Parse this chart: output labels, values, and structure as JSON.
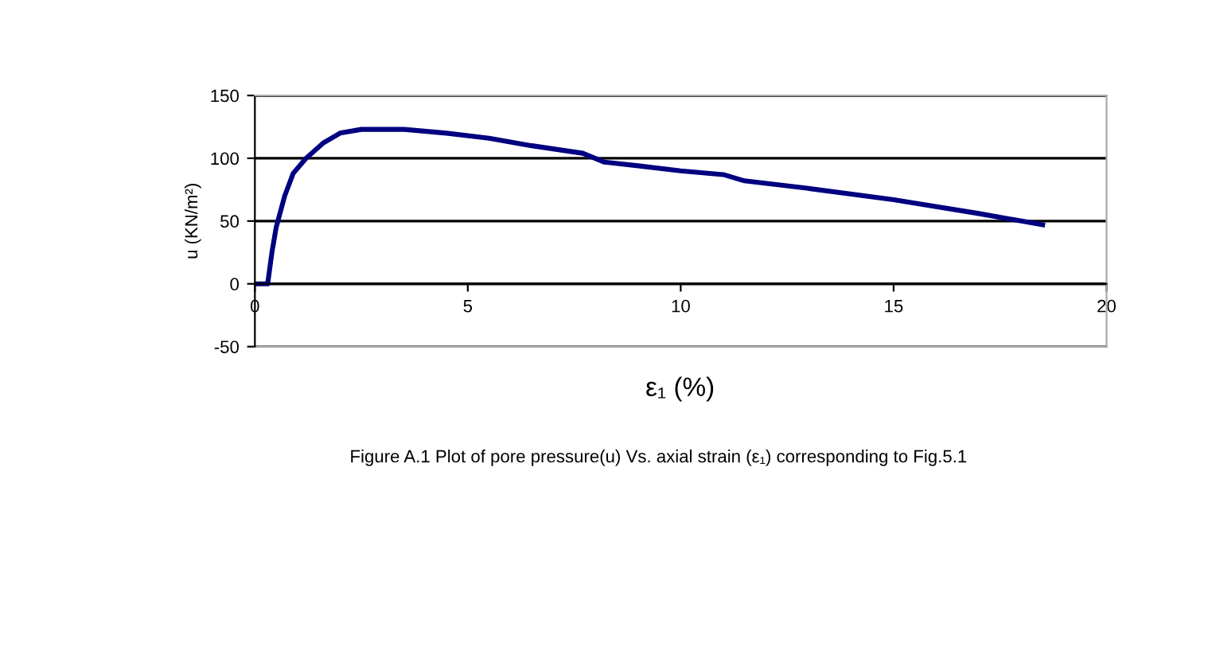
{
  "chart_data": {
    "type": "line",
    "xlabel": "ε₁ (%)",
    "ylabel": "u (KN/m²)",
    "annotations": [
      "Figure A.1 Plot of pore pressure(u) Vs. axial strain (ε₁) corresponding to Fig.5.1"
    ],
    "x": [
      0,
      0.3,
      0.4,
      0.5,
      0.7,
      0.9,
      1.2,
      1.6,
      2,
      2.5,
      3.5,
      4.5,
      5.5,
      6.5,
      7.7,
      8.2,
      9,
      10,
      11,
      11.5,
      13,
      15,
      17,
      18.5
    ],
    "series": [
      {
        "color": "#000080",
        "values": [
          0,
          0,
          25,
          45,
          70,
          88,
          100,
          112,
          120,
          123,
          123,
          120,
          116,
          110,
          104,
          97,
          94,
          90,
          87,
          82,
          76,
          67,
          56,
          47
        ]
      }
    ],
    "xlim": [
      0,
      20
    ],
    "xticks": [
      0,
      5,
      10,
      15,
      20
    ],
    "ylim": [
      -50,
      150
    ],
    "yticks": [
      -50,
      0,
      50,
      100,
      150
    ],
    "grid": "y",
    "legend": false,
    "marker": "none",
    "line_style": "solid"
  }
}
